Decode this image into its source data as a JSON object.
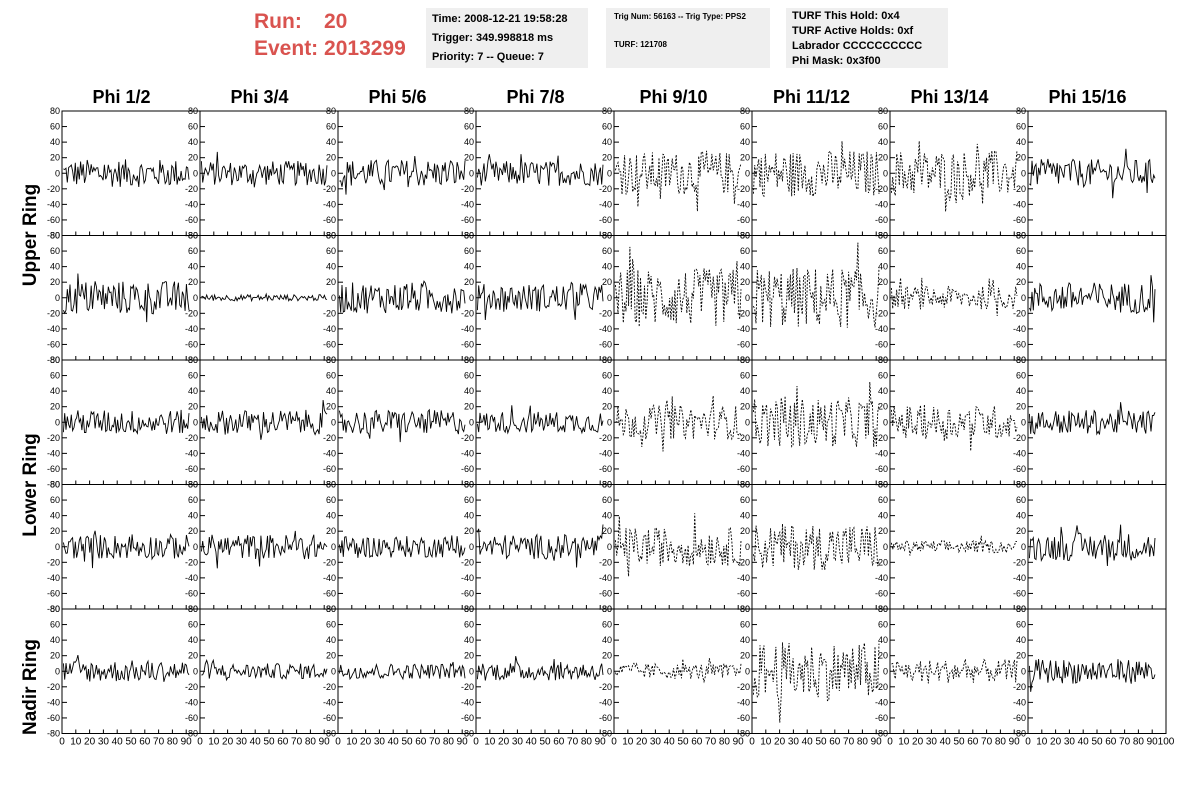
{
  "header": {
    "run_label": "Run:",
    "run_value": "20",
    "event_label": "Event:",
    "event_value": "2013299"
  },
  "info1": {
    "time": "Time: 2008-12-21 19:58:28",
    "trigger": "Trigger: 349.998818 ms",
    "priority": "Priority: 7 -- Queue: 7"
  },
  "info2": {
    "trig": "Trig Num: 56163 -- Trig Type: PPS2",
    "turf": "TURF: 121708"
  },
  "info3": {
    "hold": "TURF This Hold: 0x4",
    "active": "TURF Active Holds: 0xf",
    "labrador": "Labrador CCCCCCCCCC",
    "phimask": "Phi Mask: 0x3f00"
  },
  "columns": [
    "Phi 1/2",
    "Phi 3/4",
    "Phi 5/6",
    "Phi 7/8",
    "Phi 9/10",
    "Phi 11/12",
    "Phi 13/14",
    "Phi 15/16"
  ],
  "row_labels": [
    "Upper Ring",
    "Lower Ring",
    "Nadir Ring"
  ],
  "chart_data": {
    "type": "line",
    "description_rows": 5,
    "ylim": [
      -80,
      80
    ],
    "y_ticks": [
      -80,
      -60,
      -40,
      -20,
      0,
      20,
      40,
      60,
      80
    ],
    "xlim": [
      0,
      100
    ],
    "x_ticks": [
      0,
      10,
      20,
      30,
      40,
      50,
      60,
      70,
      80,
      90,
      100
    ],
    "waveform_points": 96,
    "panels_amplitude": [
      [
        18,
        16,
        18,
        16,
        28,
        30,
        30,
        18
      ],
      [
        22,
        4,
        20,
        18,
        38,
        40,
        15,
        20
      ],
      [
        16,
        16,
        16,
        14,
        22,
        32,
        22,
        16
      ],
      [
        16,
        16,
        14,
        16,
        25,
        30,
        8,
        18
      ],
      [
        14,
        10,
        10,
        12,
        10,
        38,
        15,
        16
      ]
    ],
    "panels_style": [
      [
        "solid",
        "solid",
        "solid",
        "solid",
        "dashed",
        "dashed",
        "dashed",
        "solid"
      ],
      [
        "solid",
        "solid",
        "solid",
        "solid",
        "dashed",
        "dashed",
        "dashed",
        "solid"
      ],
      [
        "solid",
        "solid",
        "solid",
        "solid",
        "dashed",
        "dashed",
        "dashed",
        "solid"
      ],
      [
        "solid",
        "solid",
        "solid",
        "solid",
        "dashed",
        "dashed",
        "dashed",
        "solid"
      ],
      [
        "solid",
        "solid",
        "solid",
        "solid",
        "dashed",
        "dashed",
        "dashed",
        "solid"
      ]
    ]
  }
}
